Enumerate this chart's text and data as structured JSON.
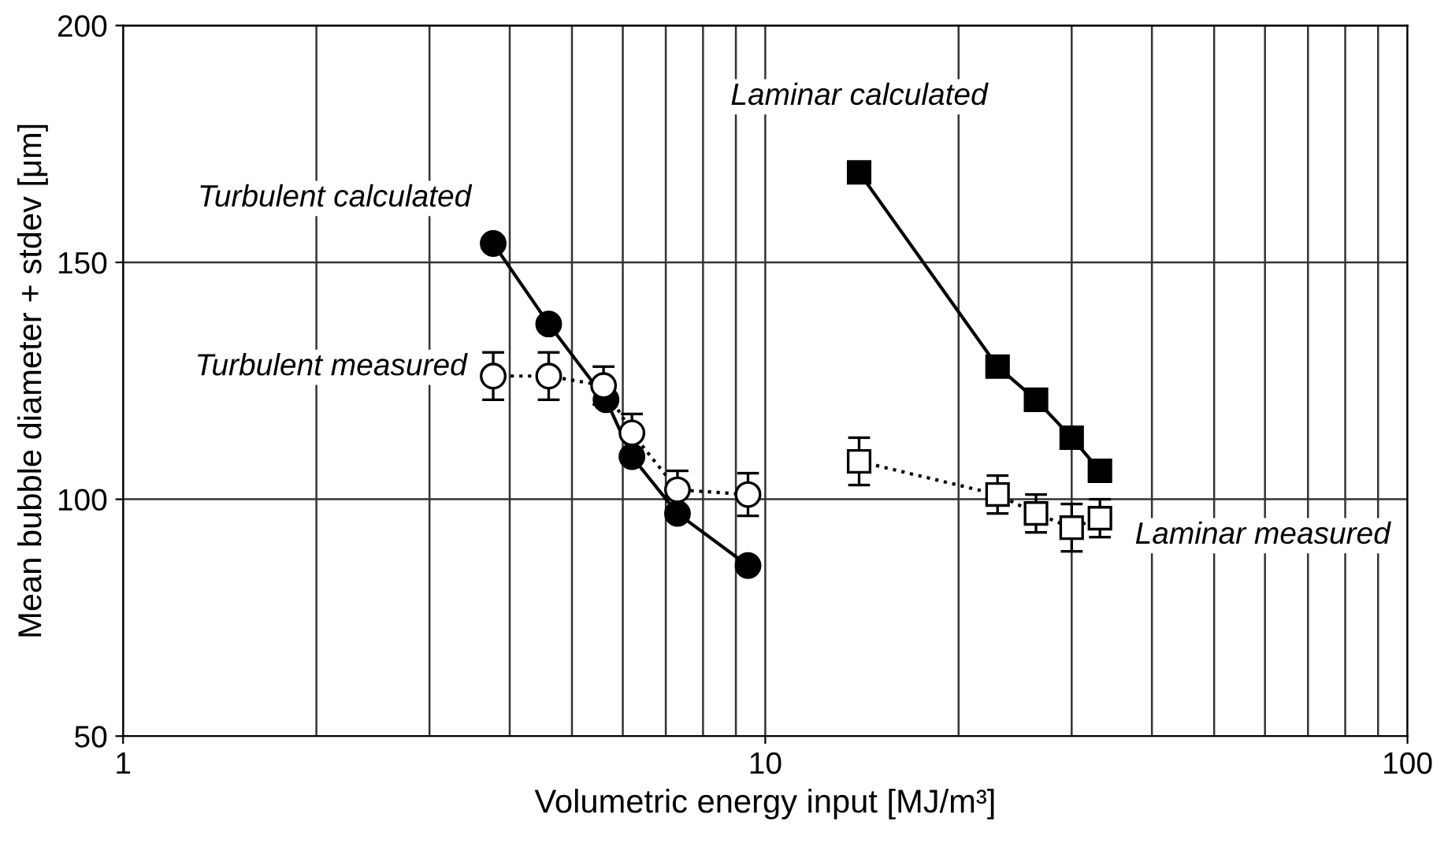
{
  "chart_data": {
    "type": "line",
    "xlabel": "Volumetric energy input [MJ/m³]",
    "ylabel": "Mean bubble diameter + stdev [μm]",
    "log": "x",
    "xlim": [
      1,
      100
    ],
    "xticks": [
      1,
      10,
      100
    ],
    "ylim": [
      50,
      200
    ],
    "yticks": [
      50,
      100,
      150,
      200
    ],
    "grid": true,
    "legend": false,
    "series": [
      {
        "name": "Turbulent calculated",
        "color": "#000000",
        "marker": "circle",
        "line_style": "solid",
        "x": [
          3.77,
          4.6,
          5.65,
          6.2,
          7.3,
          9.4
        ],
        "values": [
          154,
          137,
          121,
          109,
          97,
          86
        ]
      },
      {
        "name": "Turbulent measured",
        "color": "#ffffff",
        "marker": "circle",
        "line_style": "dotted",
        "x": [
          3.77,
          4.6,
          5.6,
          6.2,
          7.3,
          9.4
        ],
        "values": [
          126,
          126,
          124,
          114,
          102,
          101
        ],
        "errors": [
          5,
          5,
          4,
          4,
          4,
          4.5
        ]
      },
      {
        "name": "Laminar calculated",
        "color": "#000000",
        "marker": "square",
        "line_style": "solid",
        "x": [
          14,
          23,
          26.4,
          30,
          33.2
        ],
        "values": [
          169,
          128,
          121,
          113,
          106
        ]
      },
      {
        "name": "Laminar measured",
        "color": "#ffffff",
        "marker": "square",
        "line_style": "dotted",
        "x": [
          14,
          23,
          26.4,
          30,
          33.2
        ],
        "values": [
          108,
          101,
          97,
          94,
          96
        ],
        "errors": [
          5,
          4,
          4,
          5,
          4
        ]
      }
    ]
  }
}
